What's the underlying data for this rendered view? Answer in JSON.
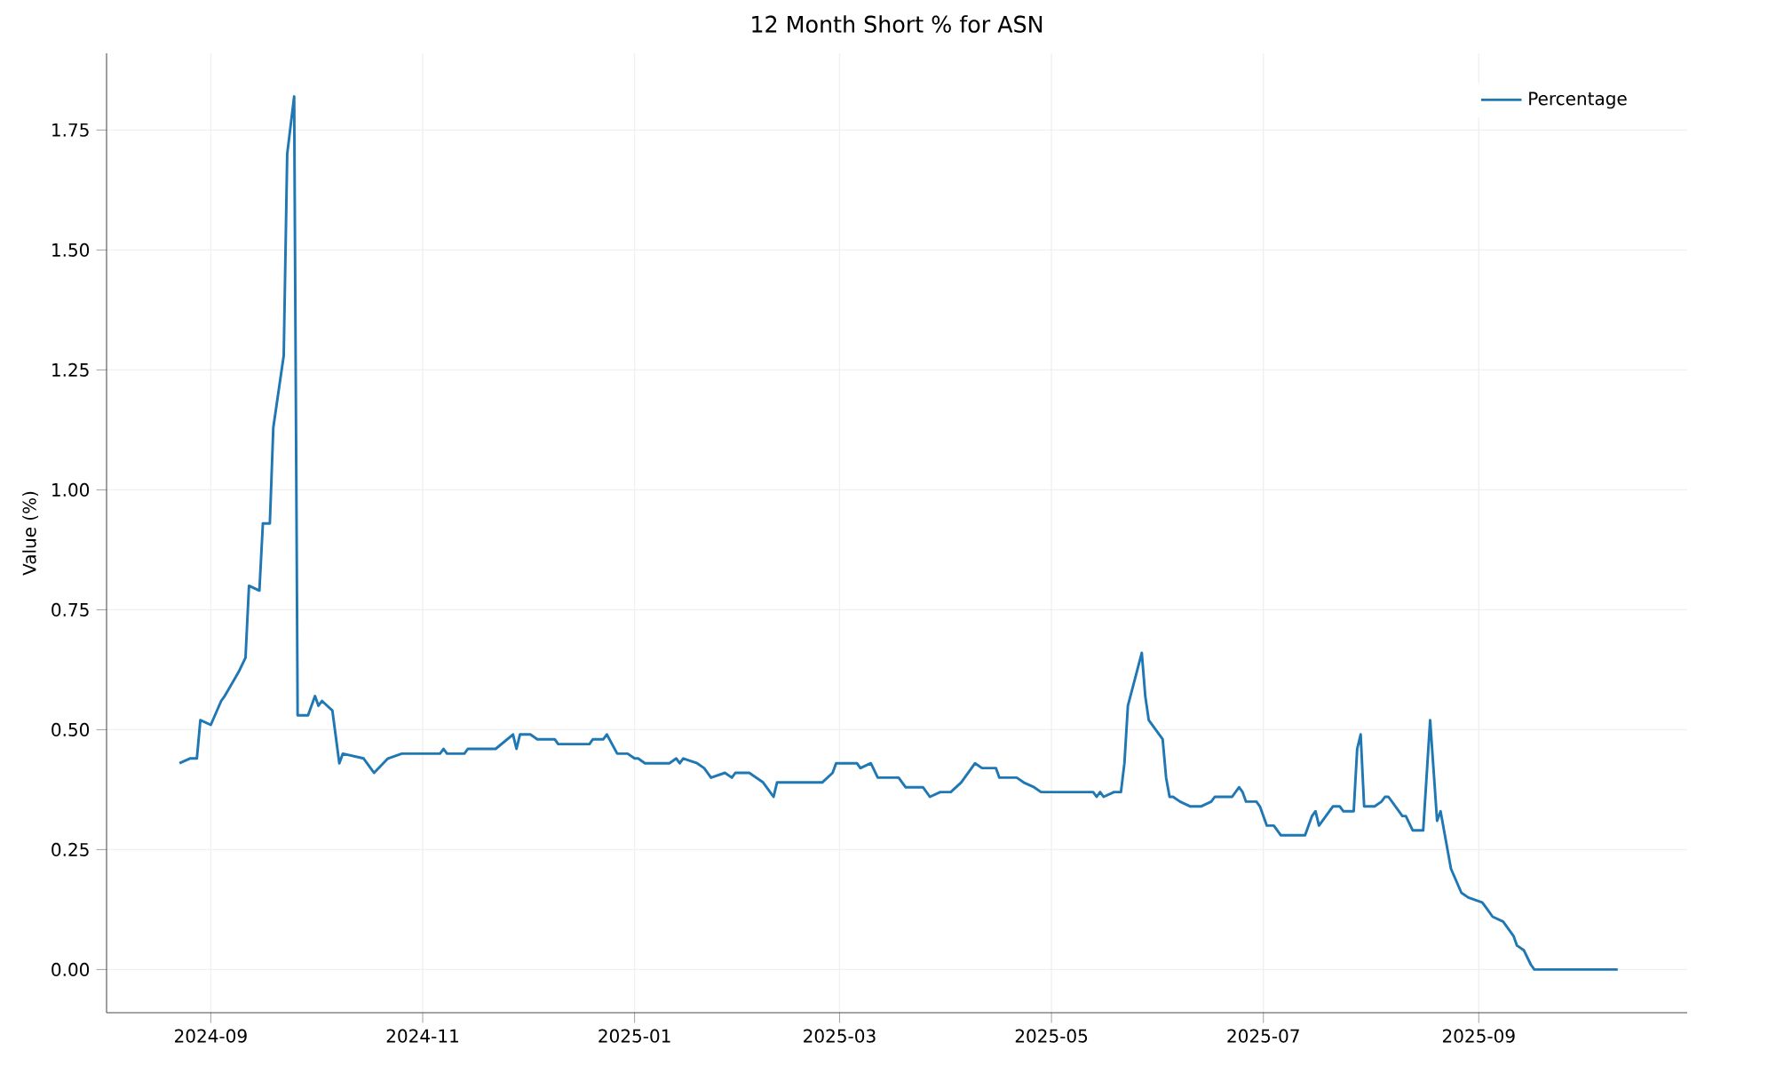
{
  "chart_data": {
    "type": "line",
    "title": "12 Month Short % for ASN",
    "ylabel": "Value (%)",
    "series": [
      {
        "name": "Percentage",
        "color": "#1f77b4",
        "x": [
          "2024-08-23",
          "2024-08-26",
          "2024-08-28",
          "2024-08-29",
          "2024-09-01",
          "2024-09-04",
          "2024-09-05",
          "2024-09-09",
          "2024-09-11",
          "2024-09-12",
          "2024-09-15",
          "2024-09-16",
          "2024-09-18",
          "2024-09-19",
          "2024-09-22",
          "2024-09-23",
          "2024-09-25",
          "2024-09-26",
          "2024-09-29",
          "2024-10-01",
          "2024-10-02",
          "2024-10-03",
          "2024-10-06",
          "2024-10-08",
          "2024-10-09",
          "2024-10-15",
          "2024-10-17",
          "2024-10-18",
          "2024-10-22",
          "2024-10-26",
          "2024-10-31",
          "2024-11-06",
          "2024-11-07",
          "2024-11-08",
          "2024-11-13",
          "2024-11-14",
          "2024-11-22",
          "2024-11-27",
          "2024-11-28",
          "2024-11-29",
          "2024-12-02",
          "2024-12-04",
          "2024-12-09",
          "2024-12-10",
          "2024-12-19",
          "2024-12-20",
          "2024-12-23",
          "2024-12-24",
          "2024-12-27",
          "2024-12-30",
          "2025-01-01",
          "2025-01-02",
          "2025-01-04",
          "2025-01-11",
          "2025-01-13",
          "2025-01-14",
          "2025-01-15",
          "2025-01-19",
          "2025-01-21",
          "2025-01-23",
          "2025-01-27",
          "2025-01-29",
          "2025-01-30",
          "2025-02-03",
          "2025-02-07",
          "2025-02-10",
          "2025-02-11",
          "2025-02-24",
          "2025-02-27",
          "2025-02-28",
          "2025-03-06",
          "2025-03-07",
          "2025-03-10",
          "2025-03-12",
          "2025-03-18",
          "2025-03-20",
          "2025-03-25",
          "2025-03-27",
          "2025-03-30",
          "2025-04-02",
          "2025-04-05",
          "2025-04-08",
          "2025-04-09",
          "2025-04-11",
          "2025-04-15",
          "2025-04-16",
          "2025-04-21",
          "2025-04-23",
          "2025-04-26",
          "2025-04-28",
          "2025-05-13",
          "2025-05-14",
          "2025-05-15",
          "2025-05-16",
          "2025-05-19",
          "2025-05-21",
          "2025-05-22",
          "2025-05-23",
          "2025-05-27",
          "2025-05-28",
          "2025-05-29",
          "2025-06-02",
          "2025-06-03",
          "2025-06-04",
          "2025-06-05",
          "2025-06-07",
          "2025-06-10",
          "2025-06-13",
          "2025-06-16",
          "2025-06-17",
          "2025-06-22",
          "2025-06-24",
          "2025-06-25",
          "2025-06-26",
          "2025-06-29",
          "2025-06-30",
          "2025-07-02",
          "2025-07-04",
          "2025-07-06",
          "2025-07-13",
          "2025-07-15",
          "2025-07-16",
          "2025-07-17",
          "2025-07-21",
          "2025-07-23",
          "2025-07-24",
          "2025-07-27",
          "2025-07-28",
          "2025-07-29",
          "2025-07-30",
          "2025-07-31",
          "2025-08-02",
          "2025-08-04",
          "2025-08-05",
          "2025-08-06",
          "2025-08-09",
          "2025-08-10",
          "2025-08-11",
          "2025-08-13",
          "2025-08-16",
          "2025-08-18",
          "2025-08-20",
          "2025-08-21",
          "2025-08-24",
          "2025-08-27",
          "2025-08-29",
          "2025-09-02",
          "2025-09-03",
          "2025-09-05",
          "2025-09-08",
          "2025-09-11",
          "2025-09-12",
          "2025-09-14",
          "2025-09-16",
          "2025-09-17",
          "2025-10-11"
        ],
        "values": [
          0.43,
          0.44,
          0.44,
          0.52,
          0.51,
          0.56,
          0.57,
          0.62,
          0.65,
          0.8,
          0.79,
          0.93,
          0.93,
          1.13,
          1.28,
          1.7,
          1.82,
          0.53,
          0.53,
          0.57,
          0.55,
          0.56,
          0.54,
          0.43,
          0.45,
          0.44,
          0.42,
          0.41,
          0.44,
          0.45,
          0.45,
          0.45,
          0.46,
          0.45,
          0.45,
          0.46,
          0.46,
          0.49,
          0.46,
          0.49,
          0.49,
          0.48,
          0.48,
          0.47,
          0.47,
          0.48,
          0.48,
          0.49,
          0.45,
          0.45,
          0.44,
          0.44,
          0.43,
          0.43,
          0.44,
          0.43,
          0.44,
          0.43,
          0.42,
          0.4,
          0.41,
          0.4,
          0.41,
          0.41,
          0.39,
          0.36,
          0.39,
          0.39,
          0.41,
          0.43,
          0.43,
          0.42,
          0.43,
          0.4,
          0.4,
          0.38,
          0.38,
          0.36,
          0.37,
          0.37,
          0.39,
          0.42,
          0.43,
          0.42,
          0.42,
          0.4,
          0.4,
          0.39,
          0.38,
          0.37,
          0.37,
          0.36,
          0.37,
          0.36,
          0.37,
          0.37,
          0.43,
          0.55,
          0.66,
          0.57,
          0.52,
          0.48,
          0.4,
          0.36,
          0.36,
          0.35,
          0.34,
          0.34,
          0.35,
          0.36,
          0.36,
          0.38,
          0.37,
          0.35,
          0.35,
          0.34,
          0.3,
          0.3,
          0.28,
          0.28,
          0.32,
          0.33,
          0.3,
          0.34,
          0.34,
          0.33,
          0.33,
          0.46,
          0.49,
          0.34,
          0.34,
          0.34,
          0.35,
          0.36,
          0.36,
          0.33,
          0.32,
          0.32,
          0.29,
          0.29,
          0.52,
          0.31,
          0.33,
          0.21,
          0.16,
          0.15,
          0.14,
          0.13,
          0.11,
          0.1,
          0.07,
          0.05,
          0.04,
          0.01,
          0.0,
          0.0
        ]
      }
    ],
    "xlim": [
      "2024-08-02",
      "2025-10-31"
    ],
    "xticks": [
      {
        "value": "2024-09-01",
        "label": "2024-09"
      },
      {
        "value": "2024-11-01",
        "label": "2024-11"
      },
      {
        "value": "2025-01-01",
        "label": "2025-01"
      },
      {
        "value": "2025-03-01",
        "label": "2025-03"
      },
      {
        "value": "2025-05-01",
        "label": "2025-05"
      },
      {
        "value": "2025-07-01",
        "label": "2025-07"
      },
      {
        "value": "2025-09-01",
        "label": "2025-09"
      }
    ],
    "ylim": [
      -0.09,
      1.91
    ],
    "yticks": [
      {
        "value": 0,
        "label": "0.00"
      },
      {
        "value": 0.25,
        "label": "0.25"
      },
      {
        "value": 0.5,
        "label": "0.50"
      },
      {
        "value": 0.75,
        "label": "0.75"
      },
      {
        "value": 1,
        "label": "1.00"
      },
      {
        "value": 1.25,
        "label": "1.25"
      },
      {
        "value": 1.5,
        "label": "1.50"
      },
      {
        "value": 1.75,
        "label": "1.75"
      }
    ],
    "grid": true,
    "legend": "top right",
    "marker": "none",
    "line_style": "solid"
  }
}
